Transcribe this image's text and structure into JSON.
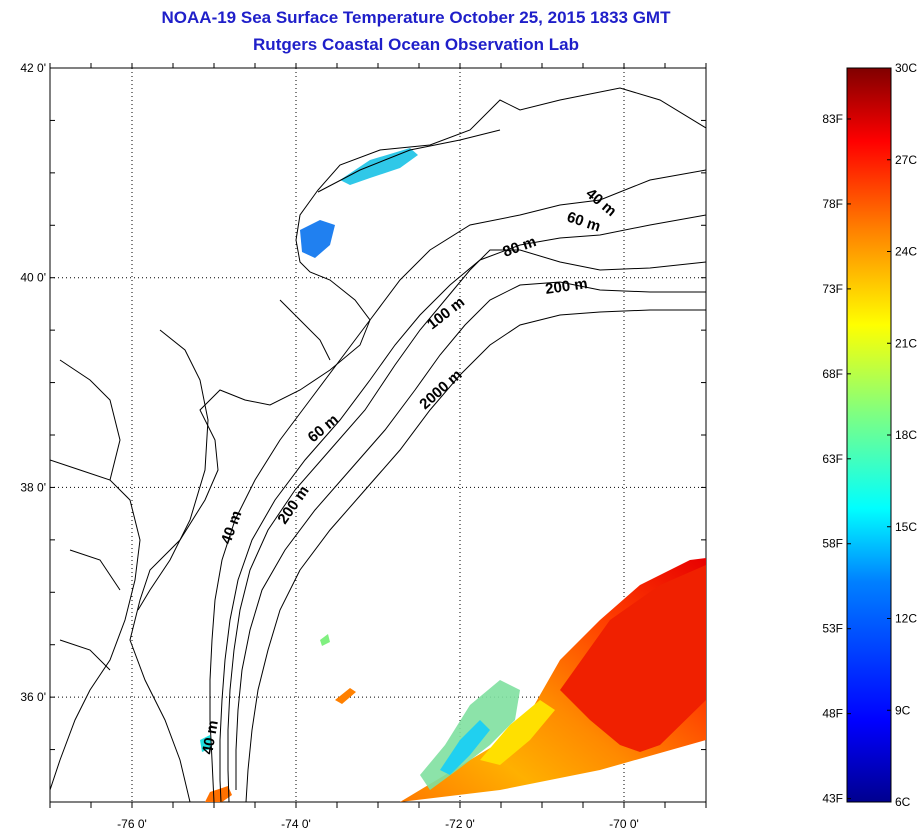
{
  "title": {
    "line1": "NOAA-19 Sea Surface Temperature October 25, 2015 1833 GMT",
    "line2": "Rutgers Coastal Ocean Observation Lab"
  },
  "map": {
    "lat_ticks": [
      {
        "value": 42,
        "label": "42 0'"
      },
      {
        "value": 40,
        "label": "40 0'"
      },
      {
        "value": 38,
        "label": "38 0'"
      },
      {
        "value": 36,
        "label": "36 0'"
      }
    ],
    "lon_ticks": [
      {
        "value": -76,
        "label": "-76 0'"
      },
      {
        "value": -74,
        "label": "-74 0'"
      },
      {
        "value": -72,
        "label": "-72 0'"
      },
      {
        "value": -70,
        "label": "-70 0'"
      }
    ],
    "extent": {
      "lon_min": -77,
      "lon_max": -69,
      "lat_min": 35,
      "lat_max": 42
    },
    "grid": "dotted",
    "isobath_labels": [
      "40 m",
      "60 m",
      "80 m",
      "200 m",
      "100 m",
      "2000 m",
      "60 m",
      "200 m",
      "40 m",
      "40 m"
    ]
  },
  "colorbar": {
    "min_c": 6,
    "max_c": 30,
    "celsius_labels": [
      "30C",
      "27C",
      "24C",
      "21C",
      "18C",
      "15C",
      "12C",
      "9C",
      "6C"
    ],
    "fahrenheit_labels": [
      "83F",
      "78F",
      "73F",
      "68F",
      "63F",
      "58F",
      "53F",
      "48F",
      "43F"
    ],
    "colors": [
      "#00008f",
      "#0000ff",
      "#0080ff",
      "#00ffff",
      "#80ff80",
      "#ffff00",
      "#ff8000",
      "#ff0000",
      "#800000"
    ]
  }
}
